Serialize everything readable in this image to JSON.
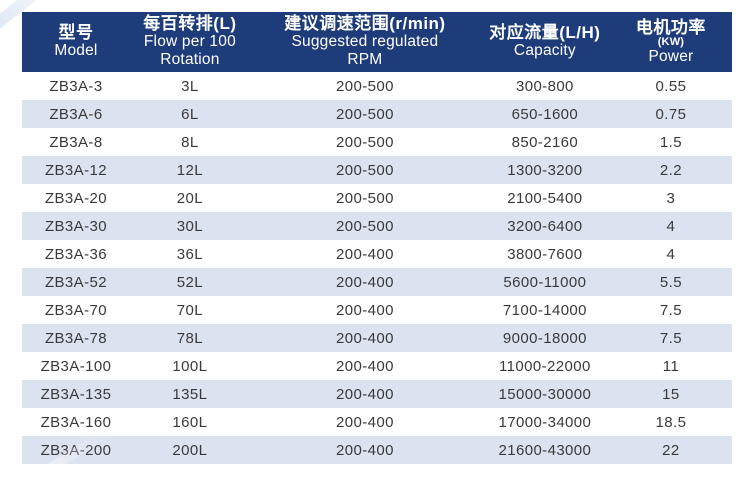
{
  "colors": {
    "header_bg": "#1e3c7a",
    "header_text": "#ffffff",
    "row_alt_bg": "#dbe2f0",
    "body_text": "#3a3a3a",
    "page_bg": "#ffffff"
  },
  "chart_data": {
    "type": "table",
    "columns": [
      {
        "lines": [
          "型号",
          "Model"
        ]
      },
      {
        "lines": [
          "每百转排(L)",
          "Flow per 100",
          "Rotation"
        ]
      },
      {
        "lines": [
          "建议调速范围(r/min)",
          "Suggested regulated",
          "RPM"
        ]
      },
      {
        "lines": [
          "对应流量(L/H)",
          "Capacity"
        ]
      },
      {
        "lines": [
          "电机功率",
          "(KW)",
          "Power"
        ],
        "small_line": 1
      }
    ],
    "column_names_en": [
      "Model",
      "Flow per 100 Rotation",
      "Suggested regulated RPM",
      "Capacity (L/H)",
      "Power (KW)"
    ],
    "rows": [
      [
        "ZB3A-3",
        "3L",
        "200-500",
        "300-800",
        "0.55"
      ],
      [
        "ZB3A-6",
        "6L",
        "200-500",
        "650-1600",
        "0.75"
      ],
      [
        "ZB3A-8",
        "8L",
        "200-500",
        "850-2160",
        "1.5"
      ],
      [
        "ZB3A-12",
        "12L",
        "200-500",
        "1300-3200",
        "2.2"
      ],
      [
        "ZB3A-20",
        "20L",
        "200-500",
        "2100-5400",
        "3"
      ],
      [
        "ZB3A-30",
        "30L",
        "200-500",
        "3200-6400",
        "4"
      ],
      [
        "ZB3A-36",
        "36L",
        "200-400",
        "3800-7600",
        "4"
      ],
      [
        "ZB3A-52",
        "52L",
        "200-400",
        "5600-11000",
        "5.5"
      ],
      [
        "ZB3A-70",
        "70L",
        "200-400",
        "7100-14000",
        "7.5"
      ],
      [
        "ZB3A-78",
        "78L",
        "200-400",
        "9000-18000",
        "7.5"
      ],
      [
        "ZB3A-100",
        "100L",
        "200-400",
        "11000-22000",
        "11"
      ],
      [
        "ZB3A-135",
        "135L",
        "200-400",
        "15000-30000",
        "15"
      ],
      [
        "ZB3A-160",
        "160L",
        "200-400",
        "17000-34000",
        "18.5"
      ],
      [
        "ZB3A-200",
        "200L",
        "200-400",
        "21600-43000",
        "22"
      ]
    ]
  }
}
